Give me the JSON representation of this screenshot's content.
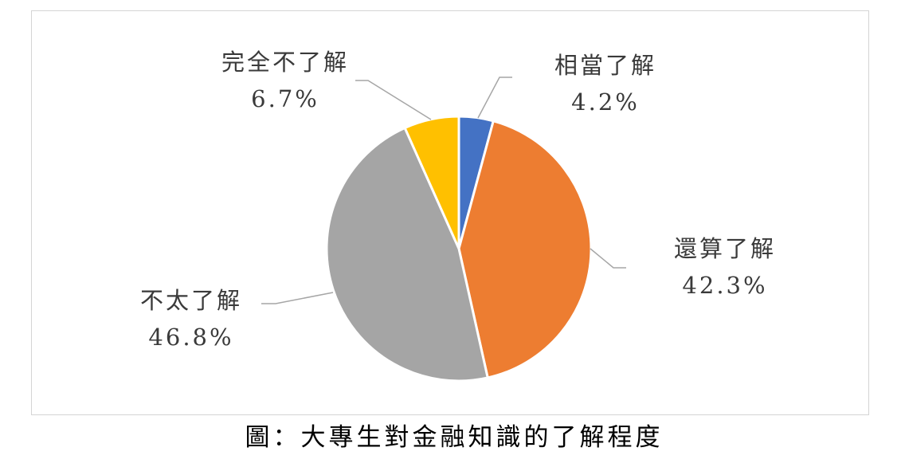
{
  "chart_data": {
    "type": "pie",
    "title": "",
    "slices": [
      {
        "label": "相當了解",
        "value": 4.2,
        "value_label": "4.2%",
        "color": "#4472C4"
      },
      {
        "label": "還算了解",
        "value": 42.3,
        "value_label": "42.3%",
        "color": "#ED7D31"
      },
      {
        "label": "不太了解",
        "value": 46.8,
        "value_label": "46.8%",
        "color": "#A5A5A5"
      },
      {
        "label": "完全不了解",
        "value": 6.7,
        "value_label": "6.7%",
        "color": "#FFC000"
      }
    ],
    "start_angle_deg": 0,
    "direction": "clockwise",
    "legend": "none"
  },
  "caption": "圖：大專生對金融知識的了解程度"
}
